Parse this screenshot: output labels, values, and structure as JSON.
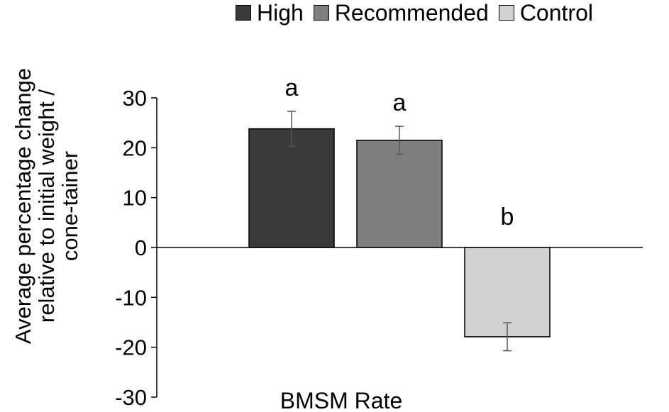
{
  "chart_data": {
    "type": "bar",
    "title": "",
    "xlabel": "BMSM Rate",
    "ylabel_lines": [
      "Average percentage change",
      "relative to initial weight /",
      "cone-tainer"
    ],
    "ylim": [
      -30,
      30
    ],
    "yticks": [
      30,
      20,
      10,
      0,
      -10,
      -20,
      -30
    ],
    "grid": false,
    "legend_position": "top",
    "series": [
      {
        "name": "High",
        "value": 23.8,
        "error": 3.5,
        "letter": "a",
        "color": "#3a3a3a"
      },
      {
        "name": "Recommended",
        "value": 21.5,
        "error": 2.8,
        "letter": "a",
        "color": "#7f7f7f"
      },
      {
        "name": "Control",
        "value": -17.9,
        "error": 2.8,
        "letter": "b",
        "color": "#d2d2d2"
      }
    ]
  }
}
